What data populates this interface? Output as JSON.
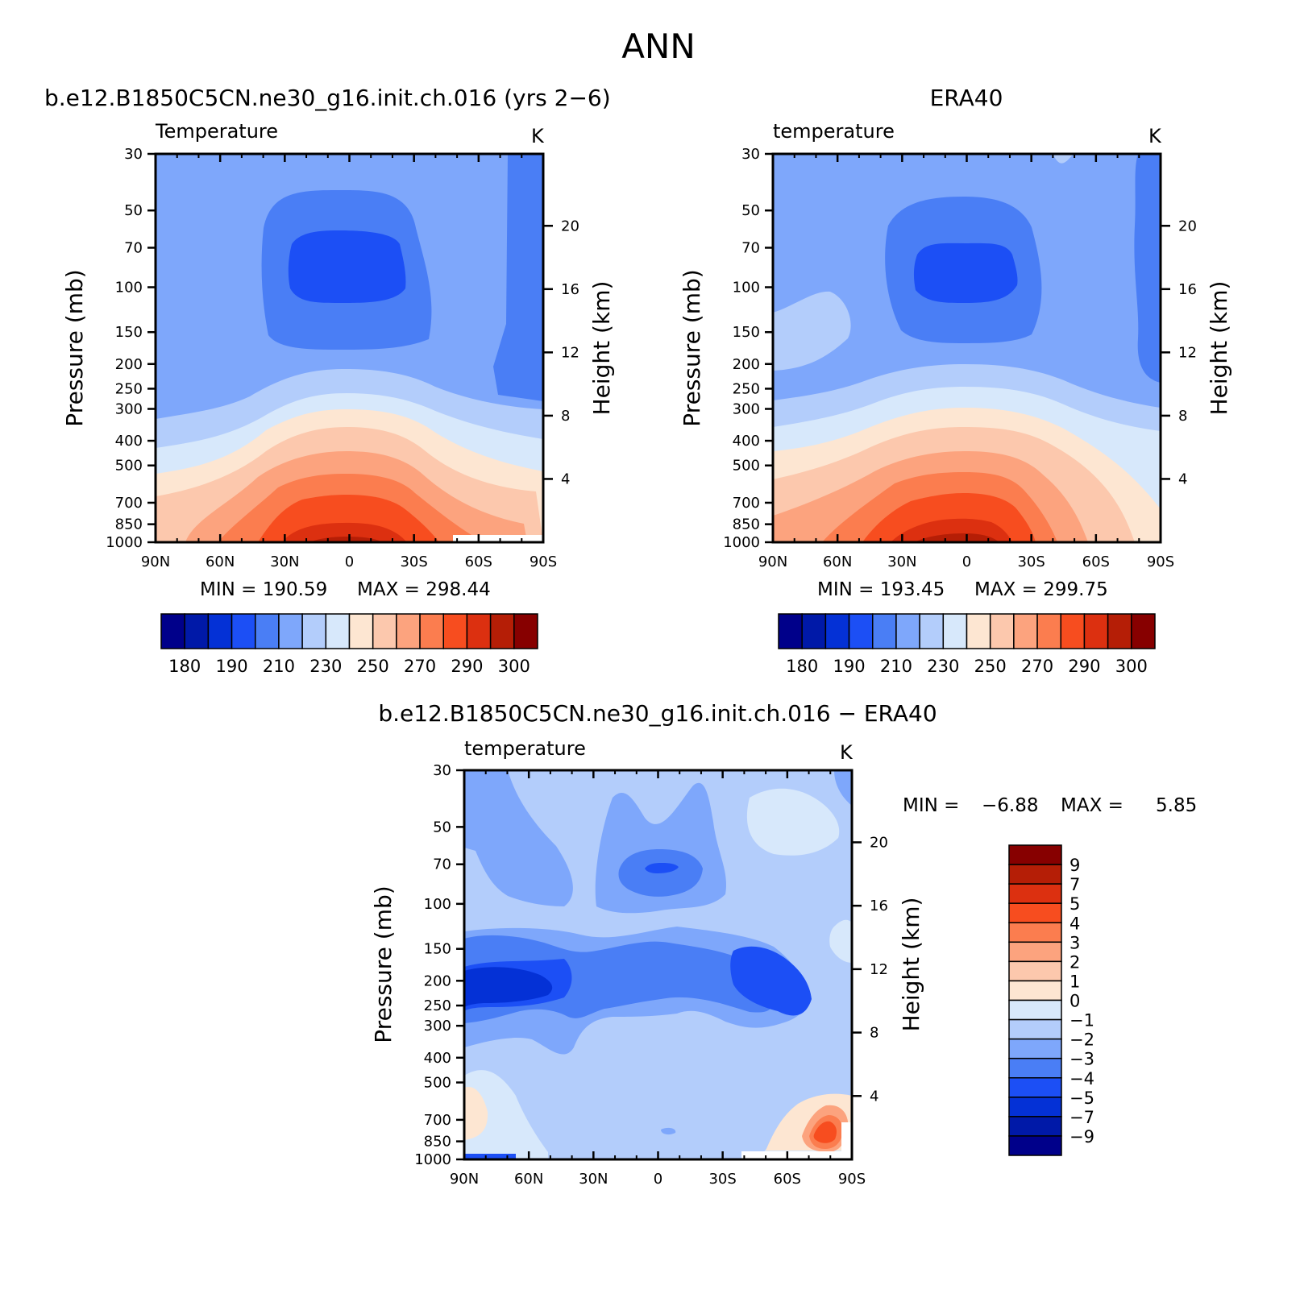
{
  "figure_title": "ANN",
  "chart_data": [
    {
      "type": "contour",
      "id": "model",
      "title": "b.e12.B1850C5CN.ne30_g16.init.ch.016 (yrs 2−6)",
      "left_label": "Temperature",
      "units": "K",
      "xlabel": "",
      "ylabel": "Pressure (mb)",
      "ylabel_right": "Height (km)",
      "x_ticks": [
        "90N",
        "60N",
        "30N",
        "0",
        "30S",
        "60S",
        "90S"
      ],
      "y_ticks": [
        "30",
        "50",
        "70",
        "100",
        "150",
        "200",
        "250",
        "300",
        "400",
        "500",
        "700",
        "850",
        "1000"
      ],
      "y_ticks_right": [
        "20",
        "16",
        "12",
        "8",
        "4"
      ],
      "xlim": [
        90,
        -90
      ],
      "ylim": [
        1000,
        30
      ],
      "min_label": "MIN = 190.59",
      "max_label": "MAX = 298.44",
      "min": 190.59,
      "max": 298.44,
      "colorbar_levels": [
        180,
        185,
        190,
        200,
        210,
        220,
        230,
        240,
        250,
        260,
        270,
        280,
        290,
        295,
        300
      ],
      "colorbar_labels": [
        "180",
        "190",
        "210",
        "230",
        "250",
        "270",
        "290",
        "300"
      ]
    },
    {
      "type": "contour",
      "id": "obs",
      "title": "ERA40",
      "left_label": "temperature",
      "units": "K",
      "xlabel": "",
      "ylabel": "Pressure (mb)",
      "ylabel_right": "Height (km)",
      "x_ticks": [
        "90N",
        "60N",
        "30N",
        "0",
        "30S",
        "60S",
        "90S"
      ],
      "y_ticks": [
        "30",
        "50",
        "70",
        "100",
        "150",
        "200",
        "250",
        "300",
        "400",
        "500",
        "700",
        "850",
        "1000"
      ],
      "y_ticks_right": [
        "20",
        "16",
        "12",
        "8",
        "4"
      ],
      "xlim": [
        90,
        -90
      ],
      "ylim": [
        1000,
        30
      ],
      "min_label": "MIN = 193.45",
      "max_label": "MAX = 299.75",
      "min": 193.45,
      "max": 299.75,
      "colorbar_levels": [
        180,
        185,
        190,
        200,
        210,
        220,
        230,
        240,
        250,
        260,
        270,
        280,
        290,
        295,
        300
      ],
      "colorbar_labels": [
        "180",
        "190",
        "210",
        "230",
        "250",
        "270",
        "290",
        "300"
      ]
    },
    {
      "type": "contour",
      "id": "diff",
      "title": "b.e12.B1850C5CN.ne30_g16.init.ch.016 − ERA40",
      "left_label": "temperature",
      "units": "K",
      "xlabel": "",
      "ylabel": "Pressure (mb)",
      "ylabel_right": "Height (km)",
      "x_ticks": [
        "90N",
        "60N",
        "30N",
        "0",
        "30S",
        "60S",
        "90S"
      ],
      "y_ticks": [
        "30",
        "50",
        "70",
        "100",
        "150",
        "200",
        "250",
        "300",
        "400",
        "500",
        "700",
        "850",
        "1000"
      ],
      "y_ticks_right": [
        "20",
        "16",
        "12",
        "8",
        "4"
      ],
      "xlim": [
        90,
        -90
      ],
      "ylim": [
        1000,
        30
      ],
      "min_label": "MIN =",
      "min_value": "−6.88",
      "max_label": "MAX =",
      "max_value": "5.85",
      "min": -6.88,
      "max": 5.85,
      "colorbar_levels": [
        -9,
        -7,
        -5,
        -4,
        -3,
        -2,
        -1,
        0,
        1,
        2,
        3,
        4,
        5,
        7,
        9
      ],
      "colorbar_labels": [
        "9",
        "7",
        "5",
        "4",
        "3",
        "2",
        "1",
        "0",
        "−1",
        "−2",
        "−3",
        "−4",
        "−5",
        "−7",
        "−9"
      ]
    }
  ],
  "colors": {
    "palette": [
      "#00008a",
      "#0019a8",
      "#0431d6",
      "#1c4ff5",
      "#4a7ef5",
      "#7ea7fb",
      "#b3cdfb",
      "#d7e8fb",
      "#fde6d2",
      "#fcc8ad",
      "#fca37e",
      "#fb7d4f",
      "#f74d1f",
      "#dc3010",
      "#b51e06",
      "#870000"
    ]
  }
}
